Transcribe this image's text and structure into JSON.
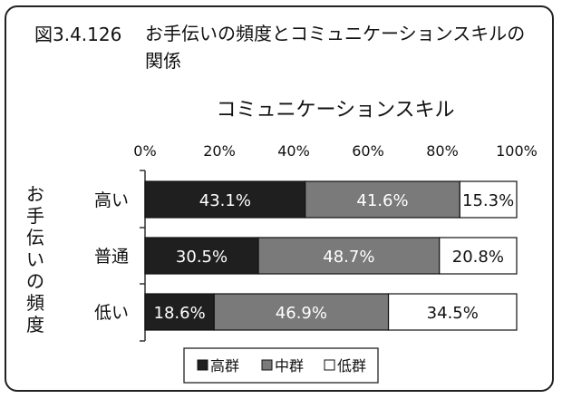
{
  "title": {
    "number": "図3.4.126",
    "text": "お手伝いの頻度とコミュニケーションスキルの関係"
  },
  "chart_data": {
    "type": "bar",
    "orientation": "horizontal",
    "stacked": "percent",
    "title": "コミュニケーションスキル",
    "ylabel": "お手伝いの頻度",
    "categories": [
      "高い",
      "普通",
      "低い"
    ],
    "x_ticks": [
      "0%",
      "20%",
      "40%",
      "60%",
      "80%",
      "100%"
    ],
    "xlim": [
      0,
      100
    ],
    "series": [
      {
        "name": "高群",
        "values": [
          43.1,
          30.5,
          18.6
        ],
        "labels": [
          "43.1%",
          "30.5%",
          "18.6%"
        ],
        "color": "#1f1f1f",
        "label_color": "#ffffff"
      },
      {
        "name": "中群",
        "values": [
          41.6,
          48.7,
          46.9
        ],
        "labels": [
          "41.6%",
          "48.7%",
          "46.9%"
        ],
        "color": "#7a7a7a",
        "label_color": "#ffffff"
      },
      {
        "name": "低群",
        "values": [
          15.3,
          20.8,
          34.5
        ],
        "labels": [
          "15.3%",
          "20.8%",
          "34.5%"
        ],
        "color": "#ffffff",
        "label_color": "#111111"
      }
    ],
    "legend_position": "bottom",
    "grid": false
  }
}
